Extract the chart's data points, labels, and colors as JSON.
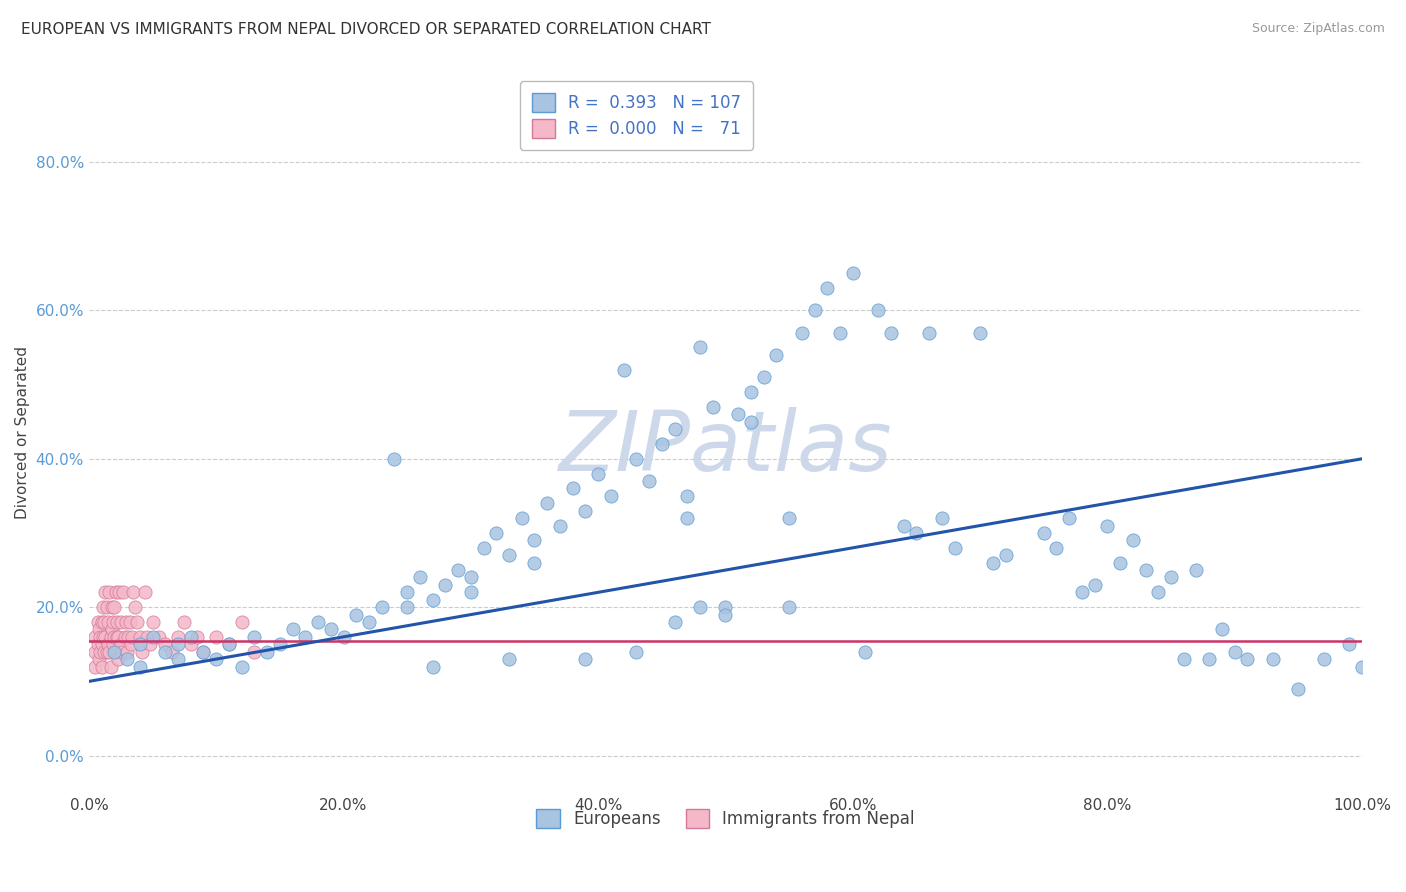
{
  "title": "EUROPEAN VS IMMIGRANTS FROM NEPAL DIVORCED OR SEPARATED CORRELATION CHART",
  "source": "Source: ZipAtlas.com",
  "ylabel": "Divorced or Separated",
  "watermark": "ZIPatlas",
  "xlim": [
    0.0,
    1.0
  ],
  "ylim": [
    -0.05,
    0.92
  ],
  "yticks": [
    0.0,
    0.2,
    0.4,
    0.6,
    0.8
  ],
  "ytick_labels": [
    "0.0%",
    "20.0%",
    "40.0%",
    "60.0%",
    "80.0%"
  ],
  "xticks": [
    0.0,
    0.2,
    0.4,
    0.6,
    0.8,
    1.0
  ],
  "xtick_labels": [
    "0.0%",
    "20.0%",
    "40.0%",
    "60.0%",
    "80.0%",
    "100.0%"
  ],
  "blue_scatter_x": [
    0.02,
    0.03,
    0.04,
    0.04,
    0.05,
    0.06,
    0.07,
    0.07,
    0.08,
    0.09,
    0.1,
    0.11,
    0.12,
    0.13,
    0.14,
    0.15,
    0.16,
    0.17,
    0.18,
    0.19,
    0.2,
    0.21,
    0.22,
    0.23,
    0.24,
    0.25,
    0.25,
    0.26,
    0.27,
    0.28,
    0.29,
    0.3,
    0.3,
    0.31,
    0.32,
    0.33,
    0.34,
    0.35,
    0.35,
    0.36,
    0.37,
    0.38,
    0.39,
    0.4,
    0.41,
    0.42,
    0.43,
    0.44,
    0.45,
    0.46,
    0.47,
    0.47,
    0.48,
    0.49,
    0.5,
    0.51,
    0.52,
    0.52,
    0.53,
    0.54,
    0.55,
    0.55,
    0.56,
    0.57,
    0.58,
    0.59,
    0.6,
    0.61,
    0.62,
    0.63,
    0.64,
    0.65,
    0.66,
    0.67,
    0.68,
    0.7,
    0.71,
    0.72,
    0.75,
    0.76,
    0.77,
    0.78,
    0.79,
    0.8,
    0.81,
    0.82,
    0.83,
    0.84,
    0.85,
    0.86,
    0.87,
    0.88,
    0.89,
    0.9,
    0.91,
    0.93,
    0.95,
    0.97,
    0.99,
    1.0,
    0.5,
    0.48,
    0.46,
    0.43,
    0.39,
    0.33,
    0.27
  ],
  "blue_scatter_y": [
    0.14,
    0.13,
    0.15,
    0.12,
    0.16,
    0.14,
    0.15,
    0.13,
    0.16,
    0.14,
    0.13,
    0.15,
    0.12,
    0.16,
    0.14,
    0.15,
    0.17,
    0.16,
    0.18,
    0.17,
    0.16,
    0.19,
    0.18,
    0.2,
    0.4,
    0.22,
    0.2,
    0.24,
    0.21,
    0.23,
    0.25,
    0.22,
    0.24,
    0.28,
    0.3,
    0.27,
    0.32,
    0.29,
    0.26,
    0.34,
    0.31,
    0.36,
    0.33,
    0.38,
    0.35,
    0.52,
    0.4,
    0.37,
    0.42,
    0.44,
    0.35,
    0.32,
    0.55,
    0.47,
    0.2,
    0.46,
    0.49,
    0.45,
    0.51,
    0.54,
    0.2,
    0.32,
    0.57,
    0.6,
    0.63,
    0.57,
    0.65,
    0.14,
    0.6,
    0.57,
    0.31,
    0.3,
    0.57,
    0.32,
    0.28,
    0.57,
    0.26,
    0.27,
    0.3,
    0.28,
    0.32,
    0.22,
    0.23,
    0.31,
    0.26,
    0.29,
    0.25,
    0.22,
    0.24,
    0.13,
    0.25,
    0.13,
    0.17,
    0.14,
    0.13,
    0.13,
    0.09,
    0.13,
    0.15,
    0.12,
    0.19,
    0.2,
    0.18,
    0.14,
    0.13,
    0.13,
    0.12
  ],
  "pink_scatter_x": [
    0.005,
    0.005,
    0.005,
    0.007,
    0.007,
    0.008,
    0.008,
    0.009,
    0.009,
    0.01,
    0.01,
    0.01,
    0.011,
    0.011,
    0.012,
    0.012,
    0.013,
    0.013,
    0.014,
    0.014,
    0.015,
    0.015,
    0.016,
    0.016,
    0.017,
    0.017,
    0.018,
    0.018,
    0.019,
    0.019,
    0.02,
    0.02,
    0.021,
    0.021,
    0.022,
    0.022,
    0.023,
    0.023,
    0.024,
    0.025,
    0.025,
    0.026,
    0.027,
    0.028,
    0.029,
    0.03,
    0.031,
    0.032,
    0.033,
    0.034,
    0.035,
    0.036,
    0.038,
    0.04,
    0.042,
    0.044,
    0.046,
    0.048,
    0.05,
    0.055,
    0.06,
    0.065,
    0.07,
    0.075,
    0.08,
    0.085,
    0.09,
    0.1,
    0.11,
    0.12,
    0.13
  ],
  "pink_scatter_y": [
    0.16,
    0.14,
    0.12,
    0.18,
    0.15,
    0.13,
    0.17,
    0.16,
    0.14,
    0.18,
    0.15,
    0.12,
    0.2,
    0.16,
    0.18,
    0.14,
    0.22,
    0.16,
    0.2,
    0.14,
    0.18,
    0.15,
    0.22,
    0.14,
    0.16,
    0.12,
    0.2,
    0.17,
    0.18,
    0.15,
    0.16,
    0.2,
    0.22,
    0.14,
    0.18,
    0.16,
    0.16,
    0.13,
    0.22,
    0.18,
    0.15,
    0.14,
    0.22,
    0.16,
    0.18,
    0.14,
    0.16,
    0.18,
    0.15,
    0.16,
    0.22,
    0.2,
    0.18,
    0.16,
    0.14,
    0.22,
    0.16,
    0.15,
    0.18,
    0.16,
    0.15,
    0.14,
    0.16,
    0.18,
    0.15,
    0.16,
    0.14,
    0.16,
    0.15,
    0.18,
    0.14
  ],
  "blue_line": {
    "x0": 0.0,
    "x1": 1.0,
    "y0": 0.1,
    "y1": 0.4
  },
  "pink_line": {
    "x0": 0.0,
    "x1": 1.0,
    "y0": 0.155,
    "y1": 0.155
  },
  "blue_color": "#a8c4e0",
  "blue_edge": "#5b9bd5",
  "pink_color": "#f4b8c8",
  "pink_edge": "#d4789a",
  "blue_line_color": "#2255aa",
  "pink_line_color": "#cc3366",
  "title_fontsize": 11,
  "ylabel_fontsize": 11,
  "tick_fontsize": 11,
  "legend_fontsize": 12,
  "watermark_fontsize": 60,
  "watermark_color": "#c8d4e8",
  "background_color": "#ffffff",
  "grid_color": "#cccccc",
  "source_text": "Source: ZipAtlas.com"
}
